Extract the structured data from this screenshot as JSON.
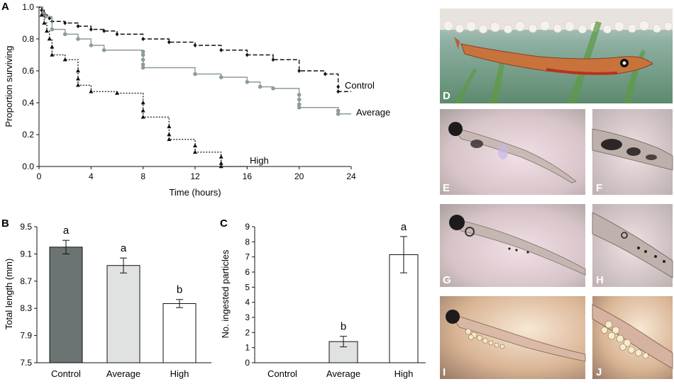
{
  "chart_data": [
    {
      "panel": "A",
      "type": "line",
      "xlabel": "Time (hours)",
      "ylabel": "Proportion surviving",
      "xlim": [
        0,
        24
      ],
      "ylim": [
        0,
        1.0
      ],
      "xticks": [
        "0",
        "4",
        "8",
        "12",
        "16",
        "20",
        "24"
      ],
      "yticks": [
        "0.0",
        "0.2",
        "0.4",
        "0.6",
        "0.8",
        "1.0"
      ],
      "series": [
        {
          "name": "Control",
          "color": "#111111",
          "points": [
            [
              0,
              1.0
            ],
            [
              0.2,
              0.98
            ],
            [
              0.4,
              0.96
            ],
            [
              0.5,
              0.95
            ],
            [
              0.8,
              0.93
            ],
            [
              1,
              0.91
            ],
            [
              2,
              0.9
            ],
            [
              3,
              0.88
            ],
            [
              4,
              0.86
            ],
            [
              5,
              0.85
            ],
            [
              6,
              0.83
            ],
            [
              8,
              0.8
            ],
            [
              10,
              0.78
            ],
            [
              12,
              0.76
            ],
            [
              14,
              0.73
            ],
            [
              16,
              0.7
            ],
            [
              18,
              0.67
            ],
            [
              20,
              0.6
            ],
            [
              22,
              0.58
            ],
            [
              23,
              0.5
            ],
            [
              23,
              0.47
            ],
            [
              24,
              0.47
            ]
          ]
        },
        {
          "name": "Average",
          "color": "#8c9c98",
          "points": [
            [
              0,
              1.0
            ],
            [
              0.3,
              0.96
            ],
            [
              0.5,
              0.94
            ],
            [
              1,
              0.86
            ],
            [
              2,
              0.83
            ],
            [
              3,
              0.8
            ],
            [
              4,
              0.76
            ],
            [
              5,
              0.73
            ],
            [
              8,
              0.72
            ],
            [
              8,
              0.7
            ],
            [
              8,
              0.67
            ],
            [
              8,
              0.64
            ],
            [
              8,
              0.62
            ],
            [
              12,
              0.58
            ],
            [
              14,
              0.56
            ],
            [
              16,
              0.53
            ],
            [
              17,
              0.5
            ],
            [
              18,
              0.49
            ],
            [
              20,
              0.45
            ],
            [
              20,
              0.42
            ],
            [
              20,
              0.39
            ],
            [
              20,
              0.37
            ],
            [
              23,
              0.35
            ],
            [
              23,
              0.33
            ],
            [
              24,
              0.33
            ]
          ]
        },
        {
          "name": "High",
          "color": "#111111",
          "points": [
            [
              0,
              1.0
            ],
            [
              0.2,
              0.95
            ],
            [
              0.4,
              0.9
            ],
            [
              0.6,
              0.85
            ],
            [
              0.8,
              0.8
            ],
            [
              1,
              0.75
            ],
            [
              1,
              0.7
            ],
            [
              2,
              0.67
            ],
            [
              3,
              0.6
            ],
            [
              3,
              0.55
            ],
            [
              3,
              0.51
            ],
            [
              4,
              0.47
            ],
            [
              6,
              0.46
            ],
            [
              8,
              0.4
            ],
            [
              8,
              0.35
            ],
            [
              8,
              0.31
            ],
            [
              10,
              0.25
            ],
            [
              10,
              0.2
            ],
            [
              10,
              0.17
            ],
            [
              12,
              0.13
            ],
            [
              12,
              0.09
            ],
            [
              14,
              0.06
            ],
            [
              14,
              0.02
            ],
            [
              14,
              0.0
            ],
            [
              16,
              0.0
            ]
          ]
        }
      ]
    },
    {
      "panel": "B",
      "type": "bar",
      "ylabel": "Total length (mm)",
      "categories": [
        "Control",
        "Average",
        "High"
      ],
      "values": [
        9.2,
        8.93,
        8.37
      ],
      "errors": [
        0.1,
        0.11,
        0.06
      ],
      "significance": [
        "a",
        "a",
        "b"
      ],
      "colors": [
        "#6b7473",
        "#dfe2e0",
        "#ffffff"
      ],
      "ylim": [
        7.5,
        9.5
      ],
      "yticks": [
        "7.5",
        "7.9",
        "8.3",
        "8.7",
        "9.1",
        "9.5"
      ]
    },
    {
      "panel": "C",
      "type": "bar",
      "ylabel": "No. ingested particles",
      "categories": [
        "Control",
        "Average",
        "High"
      ],
      "values": [
        0,
        1.4,
        7.15
      ],
      "errors": [
        0,
        0.35,
        1.2
      ],
      "significance": [
        "",
        "b",
        "a"
      ],
      "colors": [
        "#ffffff",
        "#dfe2e0",
        "#ffffff"
      ],
      "ylim": [
        0,
        9
      ],
      "yticks": [
        "0",
        "1",
        "2",
        "3",
        "4",
        "5",
        "6",
        "7",
        "8",
        "9"
      ]
    }
  ],
  "photos": [
    {
      "letter": "D",
      "description_icon": "pike-larva-photo"
    },
    {
      "letter": "E",
      "description_icon": "larva-photo"
    },
    {
      "letter": "F",
      "description_icon": "larva-gut-closeup-photo"
    },
    {
      "letter": "G",
      "description_icon": "larva-photo"
    },
    {
      "letter": "H",
      "description_icon": "larva-gut-closeup-photo"
    },
    {
      "letter": "I",
      "description_icon": "larva-with-particles-photo"
    },
    {
      "letter": "J",
      "description_icon": "larva-gut-particles-closeup-photo"
    }
  ]
}
